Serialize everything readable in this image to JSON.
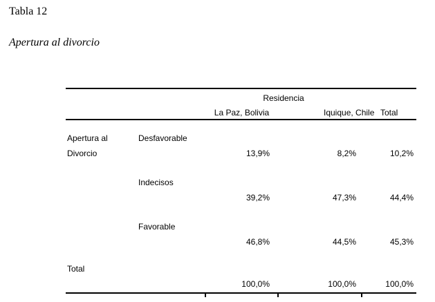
{
  "document": {
    "table_number": "Tabla 12",
    "table_title": "Apertura al divorcio"
  },
  "table": {
    "header": {
      "group_label": "Residencia",
      "columns": [
        "La Paz, Bolivia",
        "Iquique, Chile",
        "Total"
      ]
    },
    "row_group": {
      "line1": "Apertura al",
      "line2": "Divorcio"
    },
    "rows": [
      {
        "category": "Desfavorable",
        "values": [
          "13,9%",
          "8,2%",
          "10,2%"
        ]
      },
      {
        "category": "Indecisos",
        "values": [
          "39,2%",
          "47,3%",
          "44,4%"
        ]
      },
      {
        "category": "Favorable",
        "values": [
          "46,8%",
          "44,5%",
          "45,3%"
        ]
      }
    ],
    "total": {
      "label": "Total",
      "values": [
        "100,0%",
        "100,0%",
        "100,0%"
      ]
    },
    "colors": {
      "text": "#000000",
      "rule": "#000000",
      "background": "#ffffff"
    }
  }
}
